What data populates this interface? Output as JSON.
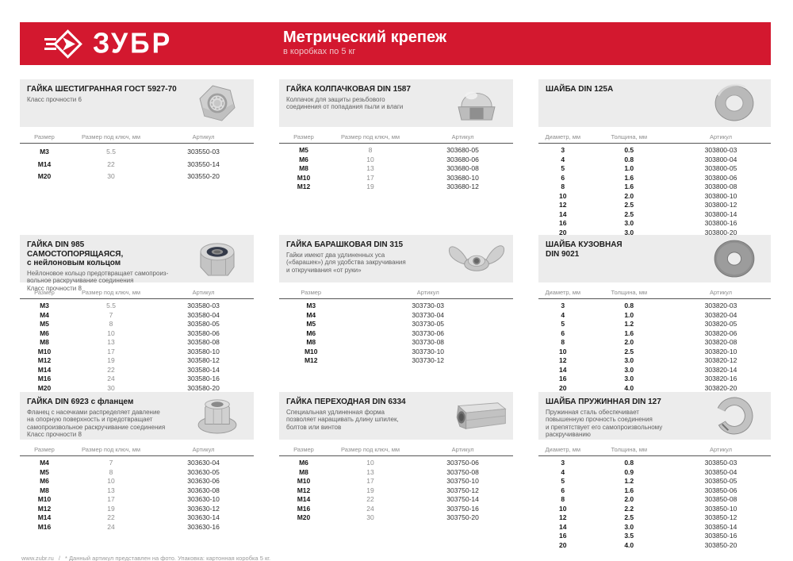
{
  "header": {
    "brand": "ЗУБР",
    "title": "Метрический крепеж",
    "subtitle": "в коробках по 5 кг",
    "accent_color": "#d3182f",
    "panel_color": "#ececec",
    "logo_icon": "zubr-arrow-diamond-icon"
  },
  "footer": {
    "site": "www.zubr.ru",
    "separator": "/",
    "note": "* Данный артикул представлен на фото. Упаковка: картонная коробка 5 кг."
  },
  "sections": [
    {
      "title": "ГАЙКА ШЕСТИГРАННАЯ ГОСТ 5927-70",
      "description": "Класс прочности 6",
      "image": "hex-nut-photo",
      "columns": [
        "Размер",
        "Размер под ключ, мм",
        "Артикул"
      ],
      "rows": [
        [
          "М3",
          "5.5",
          "303550-03"
        ],
        [
          "М14",
          "22",
          "303550-14"
        ],
        [
          "М20",
          "30",
          "303550-20"
        ]
      ]
    },
    {
      "title": "ГАЙКА КОЛПАЧКОВАЯ DIN 1587",
      "description": "Колпачок для защиты резьбового\nсоединения от попадания пыли и влаги",
      "image": "cap-nut-photo",
      "columns": [
        "Размер",
        "Размер под ключ, мм",
        "Артикул"
      ],
      "rows": [
        [
          "М5",
          "8",
          "303680-05"
        ],
        [
          "М6",
          "10",
          "303680-06"
        ],
        [
          "М8",
          "13",
          "303680-08"
        ],
        [
          "М10",
          "17",
          "303680-10"
        ],
        [
          "М12",
          "19",
          "303680-12"
        ]
      ]
    },
    {
      "title": "ШАЙБА DIN 125A",
      "description": "",
      "image": "flat-washer-photo",
      "columns": [
        "Диаметр, мм",
        "Толщина, мм",
        "Артикул"
      ],
      "rows": [
        [
          "3",
          "0.5",
          "303800-03"
        ],
        [
          "4",
          "0.8",
          "303800-04"
        ],
        [
          "5",
          "1.0",
          "303800-05"
        ],
        [
          "6",
          "1.6",
          "303800-06"
        ],
        [
          "8",
          "1.6",
          "303800-08"
        ],
        [
          "10",
          "2.0",
          "303800-10"
        ],
        [
          "12",
          "2.5",
          "303800-12"
        ],
        [
          "14",
          "2.5",
          "303800-14"
        ],
        [
          "16",
          "3.0",
          "303800-16"
        ],
        [
          "20",
          "3.0",
          "303800-20"
        ]
      ]
    },
    {
      "title": "ГАЙКА DIN 985 САМОСТОПОРЯЩАЯСЯ,\nс нейлоновым кольцом",
      "description": "Нейлоновое кольцо предотвращает самопроиз-\nвольное раскручивание соединения\nКласс прочности 8",
      "image": "nylon-lock-nut-photo",
      "columns": [
        "Размер",
        "Размер под ключ, мм",
        "Артикул"
      ],
      "rows": [
        [
          "М3",
          "5.5",
          "303580-03"
        ],
        [
          "М4",
          "7",
          "303580-04"
        ],
        [
          "М5",
          "8",
          "303580-05"
        ],
        [
          "М6",
          "10",
          "303580-06"
        ],
        [
          "М8",
          "13",
          "303580-08"
        ],
        [
          "М10",
          "17",
          "303580-10"
        ],
        [
          "М12",
          "19",
          "303580-12"
        ],
        [
          "М14",
          "22",
          "303580-14"
        ],
        [
          "М16",
          "24",
          "303580-16"
        ],
        [
          "М20",
          "30",
          "303580-20"
        ]
      ]
    },
    {
      "title": "ГАЙКА БАРАШКОВАЯ DIN 315",
      "description": "Гайки имеют два удлиненных уса\n(«барашек») для удобства закручивания\nи откручивания «от руки»",
      "image": "wing-nut-photo",
      "columns": [
        "Размер",
        "Артикул"
      ],
      "rows": [
        [
          "М3",
          "303730-03"
        ],
        [
          "М4",
          "303730-04"
        ],
        [
          "М5",
          "303730-05"
        ],
        [
          "М6",
          "303730-06"
        ],
        [
          "М8",
          "303730-08"
        ],
        [
          "М10",
          "303730-10"
        ],
        [
          "М12",
          "303730-12"
        ]
      ]
    },
    {
      "title": "ШАЙБА КУЗОВНАЯ\nDIN 9021",
      "description": "",
      "image": "fender-washer-photo",
      "columns": [
        "Диаметр, мм",
        "Толщина, мм",
        "Артикул"
      ],
      "rows": [
        [
          "3",
          "0.8",
          "303820-03"
        ],
        [
          "4",
          "1.0",
          "303820-04"
        ],
        [
          "5",
          "1.2",
          "303820-05"
        ],
        [
          "6",
          "1.6",
          "303820-06"
        ],
        [
          "8",
          "2.0",
          "303820-08"
        ],
        [
          "10",
          "2.5",
          "303820-10"
        ],
        [
          "12",
          "3.0",
          "303820-12"
        ],
        [
          "14",
          "3.0",
          "303820-14"
        ],
        [
          "16",
          "3.0",
          "303820-16"
        ],
        [
          "20",
          "4.0",
          "303820-20"
        ]
      ]
    },
    {
      "title": "ГАЙКА DIN 6923 с фланцем",
      "description": "Фланец с насечками распределяет давление\nна опорную поверхность и предотвращает\nсамопроизвольное раскручивание соединения\nКласс прочности 8",
      "image": "flange-nut-photo",
      "columns": [
        "Размер",
        "Размер под ключ, мм",
        "Артикул"
      ],
      "rows": [
        [
          "М4",
          "7",
          "303630-04"
        ],
        [
          "М5",
          "8",
          "303630-05"
        ],
        [
          "М6",
          "10",
          "303630-06"
        ],
        [
          "М8",
          "13",
          "303630-08"
        ],
        [
          "М10",
          "17",
          "303630-10"
        ],
        [
          "М12",
          "19",
          "303630-12"
        ],
        [
          "М14",
          "22",
          "303630-14"
        ],
        [
          "М16",
          "24",
          "303630-16"
        ]
      ]
    },
    {
      "title": "ГАЙКА ПЕРЕХОДНАЯ DIN 6334",
      "description": "Специальная удлиненная форма\nпозволяет наращивать длину шпилек,\nболтов или винтов",
      "image": "coupling-nut-photo",
      "columns": [
        "Размер",
        "Размер под ключ, мм",
        "Артикул"
      ],
      "rows": [
        [
          "М6",
          "10",
          "303750-06"
        ],
        [
          "М8",
          "13",
          "303750-08"
        ],
        [
          "М10",
          "17",
          "303750-10"
        ],
        [
          "М12",
          "19",
          "303750-12"
        ],
        [
          "М14",
          "22",
          "303750-14"
        ],
        [
          "М16",
          "24",
          "303750-16"
        ],
        [
          "М20",
          "30",
          "303750-20"
        ]
      ]
    },
    {
      "title": "ШАЙБА ПРУЖИННАЯ DIN 127",
      "description": "Пружинная сталь обеспечивает\nповышенную прочность соединения\nи препятствует его самопроизвольному\nраскручиванию",
      "image": "spring-washer-photo",
      "columns": [
        "Диаметр, мм",
        "Толщина, мм",
        "Артикул"
      ],
      "rows": [
        [
          "3",
          "0.8",
          "303850-03"
        ],
        [
          "4",
          "0.9",
          "303850-04"
        ],
        [
          "5",
          "1.2",
          "303850-05"
        ],
        [
          "6",
          "1.6",
          "303850-06"
        ],
        [
          "8",
          "2.0",
          "303850-08"
        ],
        [
          "10",
          "2.2",
          "303850-10"
        ],
        [
          "12",
          "2.5",
          "303850-12"
        ],
        [
          "14",
          "3.0",
          "303850-14"
        ],
        [
          "16",
          "3.5",
          "303850-16"
        ],
        [
          "20",
          "4.0",
          "303850-20"
        ]
      ]
    }
  ]
}
